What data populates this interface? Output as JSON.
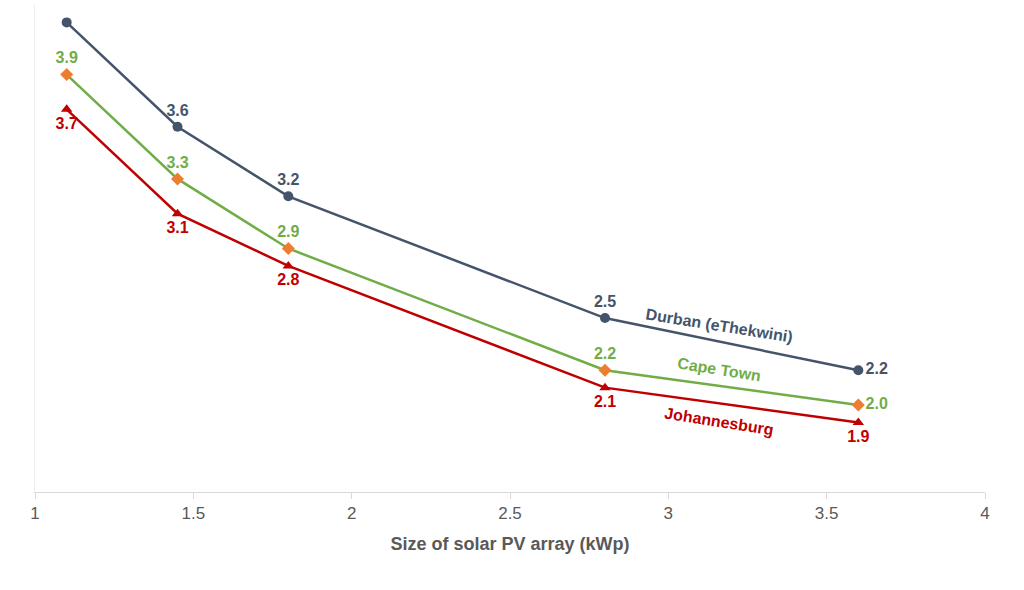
{
  "chart_data": {
    "type": "line",
    "x_label": "Size of solar PV array (kWp)",
    "x": [
      1.1,
      1.45,
      1.8,
      2.8,
      3.6
    ],
    "series": [
      {
        "name": "Durban (eThekwini)",
        "color": "#44546a",
        "marker": "circle",
        "values": [
          4.2,
          3.6,
          3.2,
          2.5,
          2.2
        ],
        "value_labels": [
          null,
          "3.6",
          "3.2",
          "2.5",
          "2.2"
        ]
      },
      {
        "name": "Cape Town",
        "color": "#70ad47",
        "marker": "diamond",
        "values": [
          3.9,
          3.3,
          2.9,
          2.2,
          2.0
        ],
        "value_labels": [
          "3.9",
          "3.3",
          "2.9",
          "2.2",
          "2.0"
        ]
      },
      {
        "name": "Johannesburg",
        "color": "#c00000",
        "marker": "triangle-up",
        "values": [
          3.7,
          3.1,
          2.8,
          2.1,
          1.9
        ],
        "value_labels": [
          "3.7",
          "3.1",
          "2.8",
          "2.1",
          "1.9"
        ]
      }
    ],
    "xlim": [
      1,
      4
    ],
    "xticks": [
      1,
      1.5,
      2,
      2.5,
      3,
      3.5,
      4
    ],
    "ylim": [
      1.5,
      4.3
    ],
    "grid": false,
    "data_labels": true,
    "tick_labels": "x"
  }
}
